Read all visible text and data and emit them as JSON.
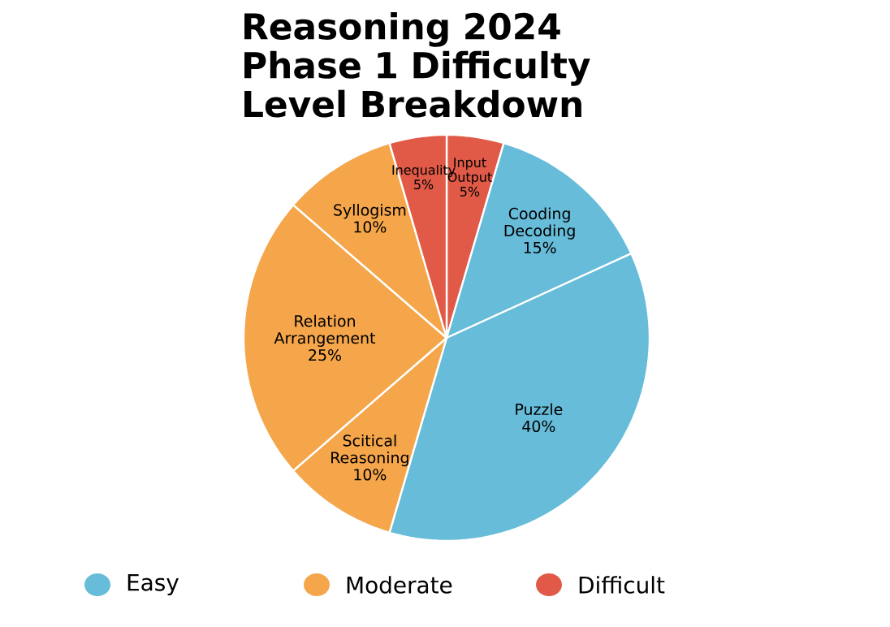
{
  "chart_data": {
    "type": "pie",
    "title": "Reasoning 2024 Phase 1 Difficulty Level Breakdown",
    "categories": [
      "Input Output",
      "Cooding Decoding",
      "Puzzle",
      "Scitical Reasoning",
      "Relation Arrangement",
      "Syllogism",
      "Inequality"
    ],
    "values": [
      5,
      15,
      40,
      10,
      25,
      10,
      5
    ],
    "colors": [
      "#e05a47",
      "#67bcd9",
      "#67bcd9",
      "#f5a54a",
      "#f5a54a",
      "#f5a54a",
      "#e05a47"
    ],
    "value_labels": [
      "5%",
      "15%",
      "40%",
      "10%",
      "25%",
      "10%",
      "5%"
    ],
    "annotations": [
      "Easy",
      "Moderate",
      "Difficult"
    ]
  }
}
